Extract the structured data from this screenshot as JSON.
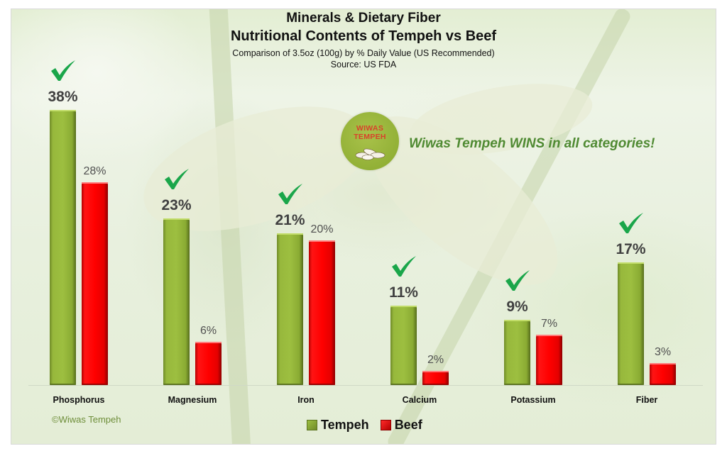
{
  "chart_data": {
    "type": "bar",
    "title": "Minerals & Dietary Fiber",
    "subtitle": "Nutritional Contents of Tempeh vs Beef",
    "description": "Comparison of 3.5oz (100g) by % Daily Value (US Recommended)",
    "source": "Source: US FDA",
    "categories": [
      "Phosphorus",
      "Magnesium",
      "Iron",
      "Calcium",
      "Potassium",
      "Fiber"
    ],
    "series": [
      {
        "name": "Tempeh",
        "color": "#9dbf40",
        "values": [
          38,
          23,
          21,
          11,
          9,
          17
        ],
        "labels": [
          "38%",
          "23%",
          "21%",
          "11%",
          "9%",
          "17%"
        ]
      },
      {
        "name": "Beef",
        "color": "#ff0000",
        "values": [
          28,
          6,
          20,
          2,
          7,
          3
        ],
        "labels": [
          "28%",
          "6%",
          "20%",
          "2%",
          "7%",
          "3%"
        ]
      }
    ],
    "xlabel": "",
    "ylabel": "% Daily Value",
    "ylim": [
      0,
      40
    ],
    "grid": false,
    "legend_position": "bottom",
    "annotations": [
      "Wiwas Tempeh WINS in all categories!",
      "check marks above each Tempeh bar"
    ]
  },
  "header": {
    "title_line1": "Minerals & Dietary Fiber",
    "title_line2": "Nutritional Contents of Tempeh vs Beef",
    "subtitle": "Comparison of 3.5oz (100g) by % Daily Value (US Recommended)",
    "source": "Source: US FDA"
  },
  "logo": {
    "line1": "WIWAS",
    "line2": "TEMPEH"
  },
  "callout": "Wiwas Tempeh WINS in all categories!",
  "copyright": "©Wiwas Tempeh",
  "legend": [
    {
      "label": "Tempeh",
      "color": "#9dbf40"
    },
    {
      "label": "Beef",
      "color": "#ff0000"
    }
  ],
  "colors": {
    "tempeh": "#9dbf40",
    "beef": "#ff0000",
    "check": "#1aa64a",
    "callout": "#4f8a32"
  }
}
